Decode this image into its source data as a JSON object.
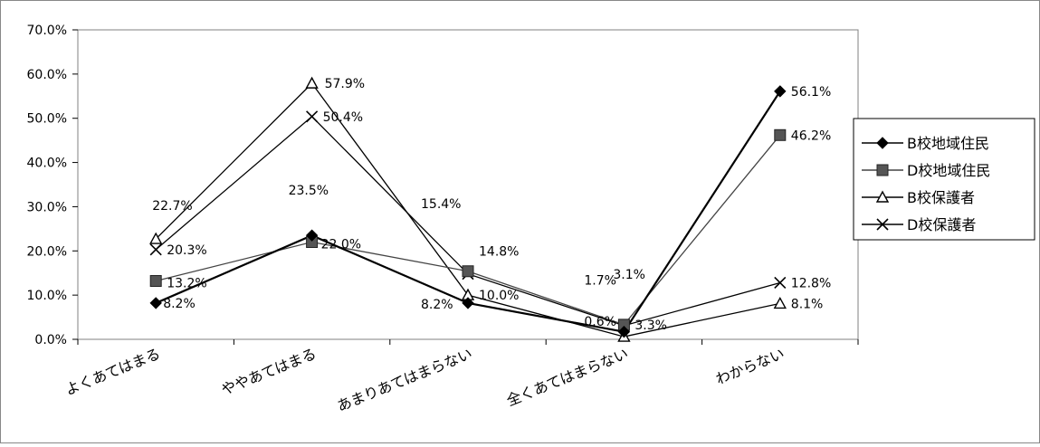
{
  "chart_data": {
    "type": "line",
    "title": "",
    "xlabel": "",
    "ylabel": "",
    "categories": [
      "よくあてはまる",
      "ややあてはまる",
      "あまりあてはまらない",
      "全くあてはまらない",
      "わからない"
    ],
    "ylim": [
      0,
      70
    ],
    "yticks": [
      "0.0%",
      "10.0%",
      "20.0%",
      "30.0%",
      "40.0%",
      "50.0%",
      "60.0%",
      "70.0%"
    ],
    "grid": false,
    "legend_position": "right",
    "series": [
      {
        "name": "B校地域住民",
        "marker": "filled-diamond",
        "color": "#000000",
        "values": [
          8.2,
          23.5,
          8.2,
          1.7,
          56.1
        ],
        "labels": [
          "8.2%",
          "23.5%",
          "8.2%",
          "1.7%",
          "56.1%"
        ]
      },
      {
        "name": "D校地域住民",
        "marker": "filled-square",
        "color": "#444444",
        "values": [
          13.2,
          22.0,
          15.4,
          3.3,
          46.2
        ],
        "labels": [
          "13.2%",
          "22.0%",
          "15.4%",
          "3.3%",
          "46.2%"
        ]
      },
      {
        "name": "B校保護者",
        "marker": "open-triangle",
        "color": "#000000",
        "values": [
          22.7,
          57.9,
          10.0,
          0.6,
          8.1
        ],
        "labels": [
          "22.7%",
          "57.9%",
          "10.0%",
          "0.6%",
          "8.1%"
        ]
      },
      {
        "name": "D校保護者",
        "marker": "x",
        "color": "#000000",
        "values": [
          20.3,
          50.4,
          14.8,
          3.1,
          12.8
        ],
        "labels": [
          "20.3%",
          "50.4%",
          "14.8%",
          "3.1%",
          "12.8%"
        ]
      }
    ]
  }
}
